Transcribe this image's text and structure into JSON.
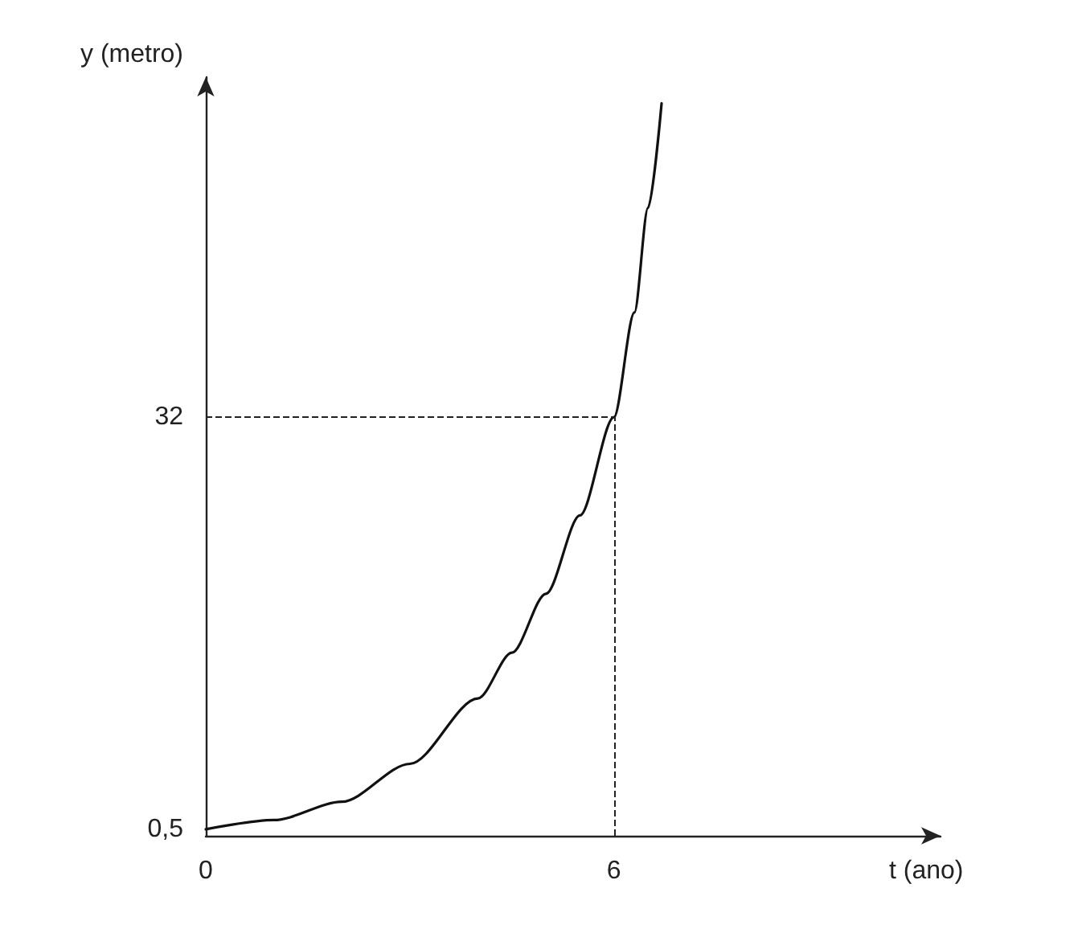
{
  "chart_data": {
    "type": "line",
    "xlabel": "t (ano)",
    "ylabel": "y (metro)",
    "x": [
      0,
      1,
      2,
      3,
      4,
      4.5,
      5,
      5.5,
      6,
      6.3,
      6.5,
      6.7
    ],
    "series": [
      {
        "color": "#111111",
        "values": [
          0.5,
          1.2,
          2.6,
          5.5,
          10.5,
          14,
          18.5,
          24.5,
          32,
          40,
          48,
          56
        ]
      }
    ],
    "xlim": [
      0,
      10.8
    ],
    "ylim": [
      0,
      58
    ],
    "xticks": [
      0,
      6
    ],
    "yticks": [
      {
        "value": 0.5,
        "label": "0,5"
      },
      32
    ],
    "ref_lines": [
      {
        "axis": "y",
        "value": 32,
        "line_style": "dashed"
      },
      {
        "axis": "x",
        "value": 6,
        "line_style": "dashed"
      }
    ],
    "grid": false,
    "marker": "none",
    "line_style": "solid"
  }
}
